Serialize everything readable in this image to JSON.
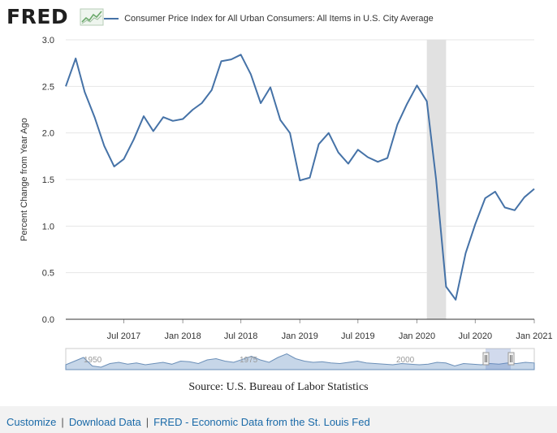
{
  "header": {
    "logo_text": "FRED",
    "legend_label": "Consumer Price Index for All Urban Consumers: All Items in U.S. City Average",
    "series_color": "#4572a7"
  },
  "chart_data": {
    "type": "line",
    "ylabel": "Percent Change from Year Ago",
    "ylim": [
      0.0,
      3.0
    ],
    "yticks": [
      "0.0",
      "0.5",
      "1.0",
      "1.5",
      "2.0",
      "2.5",
      "3.0"
    ],
    "xticks": [
      "Jul 2017",
      "Jan 2018",
      "Jul 2018",
      "Jan 2019",
      "Jul 2019",
      "Jan 2020",
      "Jul 2020",
      "Jan 2021"
    ],
    "grid": true,
    "recession_shading": [
      "2020-02",
      "2020-04"
    ],
    "series": [
      {
        "x": [
          "2017-01",
          "2017-02",
          "2017-03",
          "2017-04",
          "2017-05",
          "2017-06",
          "2017-07",
          "2017-08",
          "2017-09",
          "2017-10",
          "2017-11",
          "2017-12",
          "2018-01",
          "2018-02",
          "2018-03",
          "2018-04",
          "2018-05",
          "2018-06",
          "2018-07",
          "2018-08",
          "2018-09",
          "2018-10",
          "2018-11",
          "2018-12",
          "2019-01",
          "2019-02",
          "2019-03",
          "2019-04",
          "2019-05",
          "2019-06",
          "2019-07",
          "2019-08",
          "2019-09",
          "2019-10",
          "2019-11",
          "2019-12",
          "2020-01",
          "2020-02",
          "2020-03",
          "2020-04",
          "2020-05",
          "2020-06",
          "2020-07",
          "2020-08",
          "2020-09",
          "2020-10",
          "2020-11",
          "2020-12",
          "2021-01"
        ],
        "values": [
          2.5,
          2.8,
          2.44,
          2.17,
          1.86,
          1.64,
          1.72,
          1.93,
          2.18,
          2.02,
          2.17,
          2.13,
          2.15,
          2.25,
          2.32,
          2.46,
          2.77,
          2.79,
          2.84,
          2.63,
          2.32,
          2.49,
          2.14,
          2.0,
          1.49,
          1.52,
          1.88,
          2.0,
          1.79,
          1.67,
          1.82,
          1.74,
          1.69,
          1.73,
          2.09,
          2.31,
          2.51,
          2.34,
          1.5,
          0.35,
          0.21,
          0.71,
          1.02,
          1.3,
          1.37,
          1.2,
          1.17,
          1.31,
          1.4
        ]
      }
    ],
    "navigator": {
      "labels": [
        "1950",
        "1975",
        "2000"
      ]
    }
  },
  "source": "Source: U.S. Bureau of Labor Statistics",
  "footer": {
    "customize": "Customize",
    "download": "Download Data",
    "fred_link": "FRED - Economic Data from the St. Louis Fed"
  }
}
